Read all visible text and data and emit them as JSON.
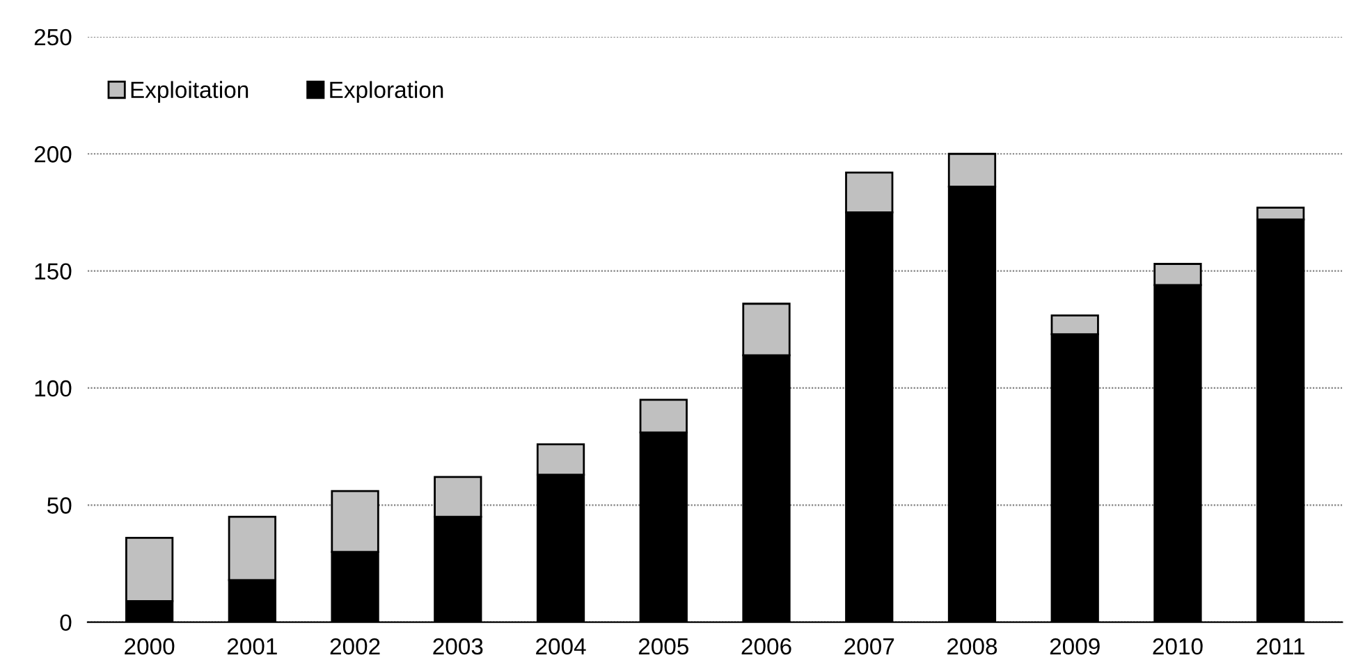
{
  "chart_data": {
    "type": "bar",
    "stacked": true,
    "categories": [
      "2000",
      "2001",
      "2002",
      "2003",
      "2004",
      "2005",
      "2006",
      "2007",
      "2008",
      "2009",
      "2010",
      "2011"
    ],
    "series": [
      {
        "name": "Exploration",
        "color": "#000000",
        "values": [
          9,
          18,
          30,
          45,
          63,
          81,
          114,
          175,
          186,
          123,
          144,
          172
        ]
      },
      {
        "name": "Exploitation",
        "color": "#c0c0c0",
        "values": [
          27,
          27,
          26,
          17,
          13,
          14,
          22,
          17,
          14,
          8,
          9,
          5
        ]
      }
    ],
    "ylim": [
      0,
      250
    ],
    "yticks": [
      0,
      50,
      100,
      150,
      200,
      250
    ],
    "grid": "y",
    "legend": "top left"
  }
}
